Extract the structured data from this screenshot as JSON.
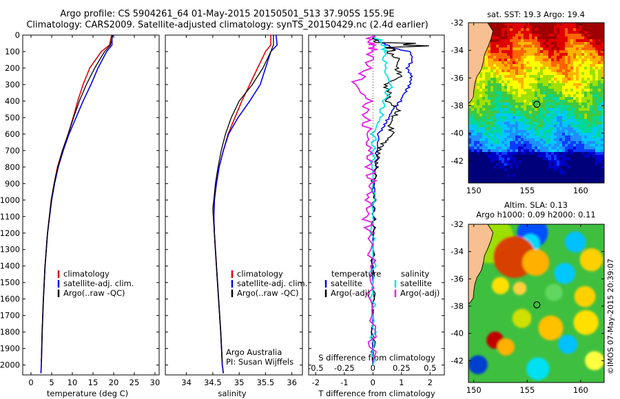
{
  "header": {
    "line1": "Argo profile: CS 5904261_64 01-May-2015 20150501_513 37.905S 155.9E",
    "line2": "Climatology: CARS2009. Satellite-adjusted climatology: synTS_20150429.nc (2.4d earlier)"
  },
  "colors": {
    "climatology": "#e00000",
    "satellite": "#0000e6",
    "argo": "#000000",
    "satellite_s": "#00e5e5",
    "argo_s": "#e61ee6",
    "land": "#f8c090"
  },
  "depth_ticks": [
    "0",
    "100",
    "200",
    "300",
    "400",
    "500",
    "600",
    "700",
    "800",
    "900",
    "1000",
    "1100",
    "1200",
    "1300",
    "1400",
    "1500",
    "1600",
    "1700",
    "1800",
    "1900",
    "2000"
  ],
  "chart_data": [
    {
      "id": "temperature",
      "type": "line",
      "xlabel": "temperature (deg C)",
      "ylabel": "",
      "xlim": [
        -2,
        31
      ],
      "ylim": [
        2060,
        0
      ],
      "xticks": [
        "0",
        "5",
        "10",
        "15",
        "20",
        "25",
        "30"
      ],
      "legend": {
        "placement": "lower-left",
        "entries": [
          "climatology",
          "satellite-adj. clim.",
          "Argo(..raw -QC)"
        ]
      },
      "series": [
        {
          "name": "climatology",
          "depth": [
            0,
            60,
            100,
            200,
            300,
            400,
            500,
            600,
            700,
            800,
            900,
            1000,
            1200,
            1400,
            1600,
            1800,
            2000,
            2050
          ],
          "values": [
            19.5,
            19.0,
            17.0,
            14.2,
            12.6,
            11.3,
            10.2,
            9.0,
            7.6,
            6.4,
            5.6,
            4.9,
            4.0,
            3.4,
            3.0,
            2.7,
            2.5,
            2.4
          ]
        },
        {
          "name": "satellite-adj. clim.",
          "depth": [
            0,
            60,
            100,
            200,
            300,
            400,
            500,
            600,
            700,
            800,
            900,
            1000,
            1200,
            1400,
            1600,
            1800,
            2000,
            2050
          ],
          "values": [
            19.6,
            19.6,
            18.3,
            16.2,
            14.5,
            12.6,
            10.9,
            9.2,
            7.8,
            6.6,
            5.7,
            5.0,
            4.0,
            3.4,
            3.0,
            2.7,
            2.5,
            2.4
          ]
        },
        {
          "name": "Argo(..raw -QC)",
          "depth": [
            0,
            60,
            100,
            200,
            300,
            400,
            500,
            600,
            700,
            800,
            900,
            1000,
            1200,
            1400,
            1600,
            1800,
            1980
          ],
          "values": [
            19.8,
            19.2,
            17.8,
            15.4,
            13.4,
            11.7,
            10.3,
            9.0,
            7.6,
            6.5,
            5.6,
            4.9,
            4.0,
            3.4,
            3.0,
            2.7,
            2.5
          ]
        }
      ]
    },
    {
      "id": "salinity",
      "type": "line",
      "xlabel": "salinity",
      "ylabel": "",
      "xlim": [
        33.6,
        36.2
      ],
      "ylim": [
        2060,
        0
      ],
      "xticks": [
        "34",
        "34.5",
        "35",
        "35.5",
        "36"
      ],
      "legend": {
        "placement": "lower-right",
        "entries": [
          "climatology",
          "satellite-adj. clim.",
          "Argo(..raw -QC)"
        ]
      },
      "annotation": [
        "Argo Australia",
        "PI: Susan Wijffels"
      ],
      "series": [
        {
          "name": "climatology",
          "depth": [
            0,
            60,
            100,
            200,
            300,
            400,
            500,
            600,
            700,
            800,
            900,
            1000,
            1100,
            1200,
            1400,
            1600,
            1800,
            2000,
            2050
          ],
          "values": [
            35.6,
            35.6,
            35.5,
            35.35,
            35.2,
            35.05,
            34.92,
            34.79,
            34.7,
            34.62,
            34.57,
            34.53,
            34.52,
            34.53,
            34.57,
            34.61,
            34.65,
            34.68,
            34.7
          ]
        },
        {
          "name": "satellite-adj. clim.",
          "depth": [
            0,
            60,
            100,
            200,
            300,
            400,
            500,
            600,
            700,
            800,
            900,
            1000,
            1100,
            1200,
            1400,
            1600,
            1800,
            2000,
            2050
          ],
          "values": [
            35.7,
            35.72,
            35.6,
            35.5,
            35.4,
            35.2,
            34.98,
            34.8,
            34.7,
            34.62,
            34.57,
            34.53,
            34.52,
            34.53,
            34.57,
            34.61,
            34.65,
            34.68,
            34.7
          ]
        },
        {
          "name": "Argo(..raw -QC)",
          "depth": [
            0,
            60,
            100,
            200,
            300,
            400,
            500,
            600,
            700,
            800,
            900,
            1000,
            1050,
            1100,
            1200,
            1400,
            1600,
            1800,
            1980
          ],
          "values": [
            35.65,
            35.65,
            35.6,
            35.45,
            35.25,
            35.0,
            34.85,
            34.74,
            34.66,
            34.6,
            34.55,
            34.52,
            34.5,
            34.51,
            34.53,
            34.57,
            34.61,
            34.65,
            34.68
          ]
        }
      ]
    },
    {
      "id": "difference",
      "type": "line",
      "xlabel": "T difference from climatology",
      "xlabel_top": "S difference from climatology",
      "xlim": [
        -2.25,
        2.5
      ],
      "ylim": [
        2060,
        0
      ],
      "xticks_bottom": [
        "-2",
        "-1",
        "0",
        "1",
        "2"
      ],
      "xticks_top": [
        "-0.5",
        "-0.25",
        "0",
        "0.25",
        "0.5"
      ],
      "legend": {
        "placement": "bottom",
        "headers": [
          "temperature",
          "salinity"
        ],
        "entries": [
          "satellite",
          "Argo(-adj)",
          "satellite",
          "Argo(-adj)"
        ]
      },
      "series": [
        {
          "name": "temperature satellite",
          "depth": [
            0,
            40,
            60,
            80,
            100,
            150,
            200,
            250,
            300,
            350,
            400,
            450,
            500,
            550,
            600,
            700,
            800,
            900,
            1000,
            1100,
            1200,
            1400,
            1600,
            1800,
            2000
          ],
          "values": [
            0,
            0.2,
            0.5,
            0.7,
            1.3,
            1.4,
            1.2,
            1.35,
            1.3,
            1.1,
            0.95,
            0.7,
            0.55,
            0.4,
            0.2,
            0.15,
            0.1,
            0.06,
            0.05,
            0.02,
            0.01,
            0,
            0,
            0,
            0
          ]
        },
        {
          "name": "temperature Argo(-adj)",
          "depth": [
            0,
            45,
            50,
            60,
            65,
            70,
            75,
            80,
            90,
            100,
            150,
            200,
            250,
            300,
            350,
            400,
            450,
            500,
            550,
            600,
            650,
            700,
            750,
            800,
            900,
            1000,
            1100,
            1200,
            1400,
            1600,
            1800,
            1980
          ],
          "values": [
            0,
            0.1,
            1.5,
            1.0,
            2.0,
            1.3,
            0.4,
            0.6,
            0.8,
            0.5,
            0.9,
            0.8,
            1.0,
            0.4,
            0.6,
            0.5,
            0.9,
            0.7,
            0.6,
            0.7,
            0.4,
            0.2,
            0.15,
            0.1,
            0.02,
            0,
            0.02,
            0,
            0.02,
            0,
            0.02,
            0
          ]
        },
        {
          "name": "salinity satellite",
          "depth": [
            0,
            60,
            100,
            200,
            300,
            400,
            500,
            600,
            700,
            800,
            1000,
            1200,
            1400,
            1600,
            1800,
            2000
          ],
          "values": [
            0,
            0.1,
            0.1,
            0.1,
            0.15,
            0.1,
            0.06,
            0.01,
            0,
            0,
            0,
            0,
            0,
            0,
            0,
            0
          ]
        },
        {
          "name": "salinity Argo(-adj)",
          "depth": [
            0,
            40,
            60,
            100,
            200,
            300,
            400,
            500,
            600,
            700,
            800,
            900,
            1000,
            1100,
            1200,
            1400,
            1600,
            1800,
            1980
          ],
          "values": [
            0,
            -0.05,
            0,
            0,
            -0.05,
            -0.15,
            -0.05,
            -0.07,
            -0.05,
            -0.04,
            -0.02,
            -0.02,
            -0.03,
            -0.05,
            -0.02,
            -0.02,
            -0.01,
            -0.01,
            0
          ]
        }
      ]
    },
    {
      "id": "sst_map",
      "type": "heatmap",
      "title": "sat. SST: 19.3  Argo: 19.4",
      "xlim": [
        149.5,
        162.2
      ],
      "ylim": [
        -43.6,
        -32
      ],
      "xticks": [
        "150",
        "155",
        "160"
      ],
      "yticks": [
        "-32",
        "-34",
        "-36",
        "-38",
        "-40",
        "-42"
      ],
      "marker": {
        "lon": 155.9,
        "lat": -37.905
      }
    },
    {
      "id": "sla_map",
      "type": "heatmap",
      "title": "Altim. SLA: 0.13",
      "subtitle": "Argo h1000: 0.09  h2000: 0.11",
      "xlim": [
        149.5,
        162.2
      ],
      "ylim": [
        -43.6,
        -32
      ],
      "xticks": [
        "150",
        "155",
        "160"
      ],
      "yticks": [
        "-32",
        "-34",
        "-36",
        "-38",
        "-40",
        "-42"
      ],
      "marker": {
        "lon": 155.9,
        "lat": -37.905
      }
    }
  ],
  "credit": "©IMOS 07-May-2015 20:39:07"
}
